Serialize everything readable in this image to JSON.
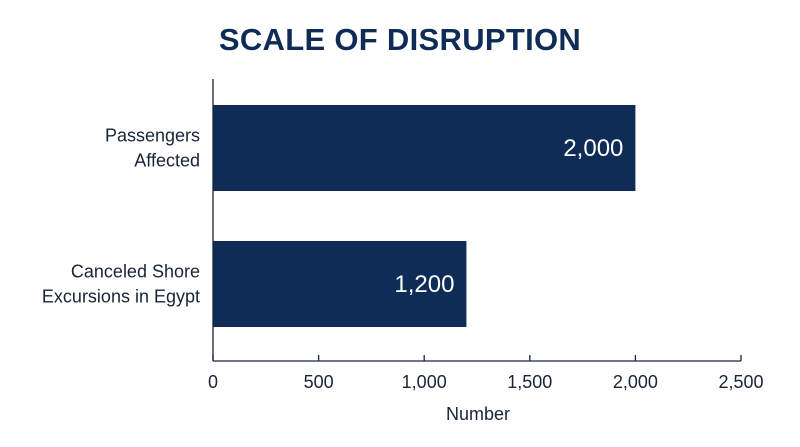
{
  "chart_data": {
    "type": "bar",
    "orientation": "horizontal",
    "title": "SCALE OF DISRUPTION",
    "xlabel": "Number",
    "ylabel": "",
    "categories": [
      [
        "Passengers",
        "Affected"
      ],
      [
        "Canceled Shore",
        "Excursions in Egypt"
      ]
    ],
    "values": [
      2000,
      1200
    ],
    "data_labels": [
      "2,000",
      "1,200"
    ],
    "xlim": [
      0,
      2500
    ],
    "xticks": [
      0,
      500,
      1000,
      1500,
      2000,
      2500
    ],
    "xtick_labels": [
      "0",
      "500",
      "1,000",
      "1,500",
      "2,000",
      "2,500"
    ],
    "grid": false,
    "legend": "none",
    "colors": {
      "bar": "#0f2c57",
      "axis": "#1a2438",
      "title": "#0f2c57",
      "data_label": "#ffffff"
    }
  }
}
